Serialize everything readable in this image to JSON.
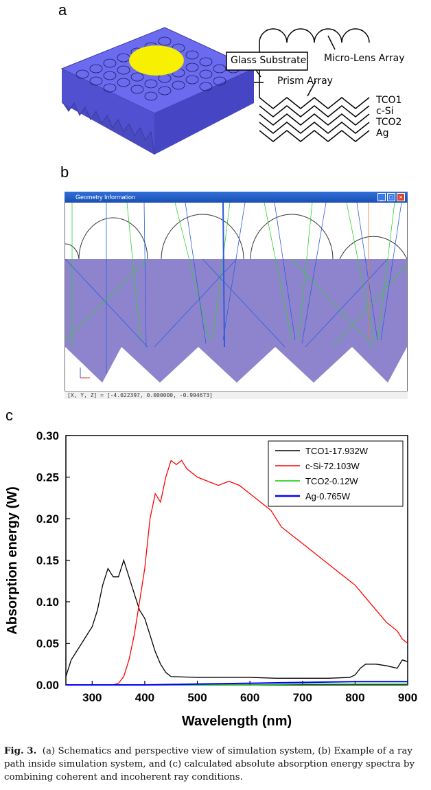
{
  "panel_labels": {
    "a": "a",
    "b": "b",
    "c": "c"
  },
  "panel_a": {
    "labels": {
      "glass_substrate": "Glass Substrate",
      "micro_lens_array": "Micro-Lens Array",
      "prism_array": "Prism Array",
      "tco1": "TCO1",
      "csi": "c-Si",
      "tco2": "TCO2",
      "ag": "Ag"
    },
    "colors": {
      "substrate": "#6b6bf0",
      "spot": "#f7f000"
    }
  },
  "panel_b": {
    "window_title": "Geometry Information",
    "status_text": "[X, Y, Z] = [-4.022397, 0.000000, -0.994673]",
    "colors": {
      "glass": "#7a6fc4",
      "ray_green": "#2fd12f",
      "ray_blue": "#2d5be0"
    }
  },
  "chart_data": {
    "type": "line",
    "title": "",
    "xlabel": "Wavelength (nm)",
    "ylabel": "Absorption energy (W)",
    "xlim": [
      250,
      900
    ],
    "ylim": [
      0,
      0.3
    ],
    "xticks": [
      "300",
      "400",
      "500",
      "600",
      "700",
      "800",
      "900"
    ],
    "yticks": [
      "0.00",
      "0.05",
      "0.10",
      "0.15",
      "0.20",
      "0.25",
      "0.30"
    ],
    "legend_position": "top-right",
    "series": [
      {
        "name": "TCO1-17.932W",
        "color": "#000000",
        "x": [
          250,
          260,
          270,
          280,
          290,
          300,
          310,
          320,
          330,
          340,
          350,
          360,
          370,
          380,
          390,
          400,
          410,
          420,
          430,
          440,
          450,
          500,
          550,
          600,
          650,
          700,
          750,
          790,
          800,
          810,
          820,
          840,
          860,
          880,
          890,
          900
        ],
        "y": [
          0.01,
          0.03,
          0.04,
          0.05,
          0.06,
          0.07,
          0.09,
          0.12,
          0.14,
          0.13,
          0.13,
          0.15,
          0.13,
          0.11,
          0.09,
          0.08,
          0.06,
          0.04,
          0.025,
          0.015,
          0.01,
          0.009,
          0.009,
          0.009,
          0.008,
          0.008,
          0.008,
          0.009,
          0.012,
          0.02,
          0.025,
          0.025,
          0.023,
          0.02,
          0.03,
          0.028
        ]
      },
      {
        "name": "c-Si-72.103W",
        "color": "#ff0000",
        "x": [
          340,
          350,
          360,
          370,
          380,
          390,
          400,
          410,
          420,
          430,
          440,
          450,
          460,
          470,
          480,
          500,
          520,
          540,
          560,
          580,
          600,
          620,
          640,
          660,
          680,
          700,
          720,
          740,
          760,
          780,
          800,
          820,
          840,
          860,
          880,
          890,
          900
        ],
        "y": [
          0,
          0.002,
          0.01,
          0.03,
          0.06,
          0.1,
          0.14,
          0.2,
          0.23,
          0.22,
          0.25,
          0.27,
          0.265,
          0.27,
          0.26,
          0.25,
          0.245,
          0.24,
          0.245,
          0.24,
          0.23,
          0.22,
          0.21,
          0.19,
          0.18,
          0.17,
          0.16,
          0.15,
          0.14,
          0.13,
          0.12,
          0.105,
          0.09,
          0.075,
          0.065,
          0.055,
          0.05
        ]
      },
      {
        "name": "TCO2-0.12W",
        "color": "#00cc00",
        "x": [
          250,
          400,
          500,
          600,
          700,
          800,
          900
        ],
        "y": [
          0,
          0,
          0,
          0,
          0.001,
          0.001,
          0.001
        ]
      },
      {
        "name": "Ag-0.765W",
        "color": "#0000ff",
        "x": [
          250,
          400,
          500,
          600,
          700,
          800,
          850,
          900
        ],
        "y": [
          0,
          0,
          0.001,
          0.002,
          0.003,
          0.004,
          0.004,
          0.004
        ]
      }
    ]
  },
  "caption": {
    "label": "Fig. 3.",
    "text": "(a) Schematics and perspective view of simulation system, (b) Example of a ray path inside simulation system, and (c) calculated absolute absorption energy spectra by combining coherent and incoherent ray conditions."
  }
}
